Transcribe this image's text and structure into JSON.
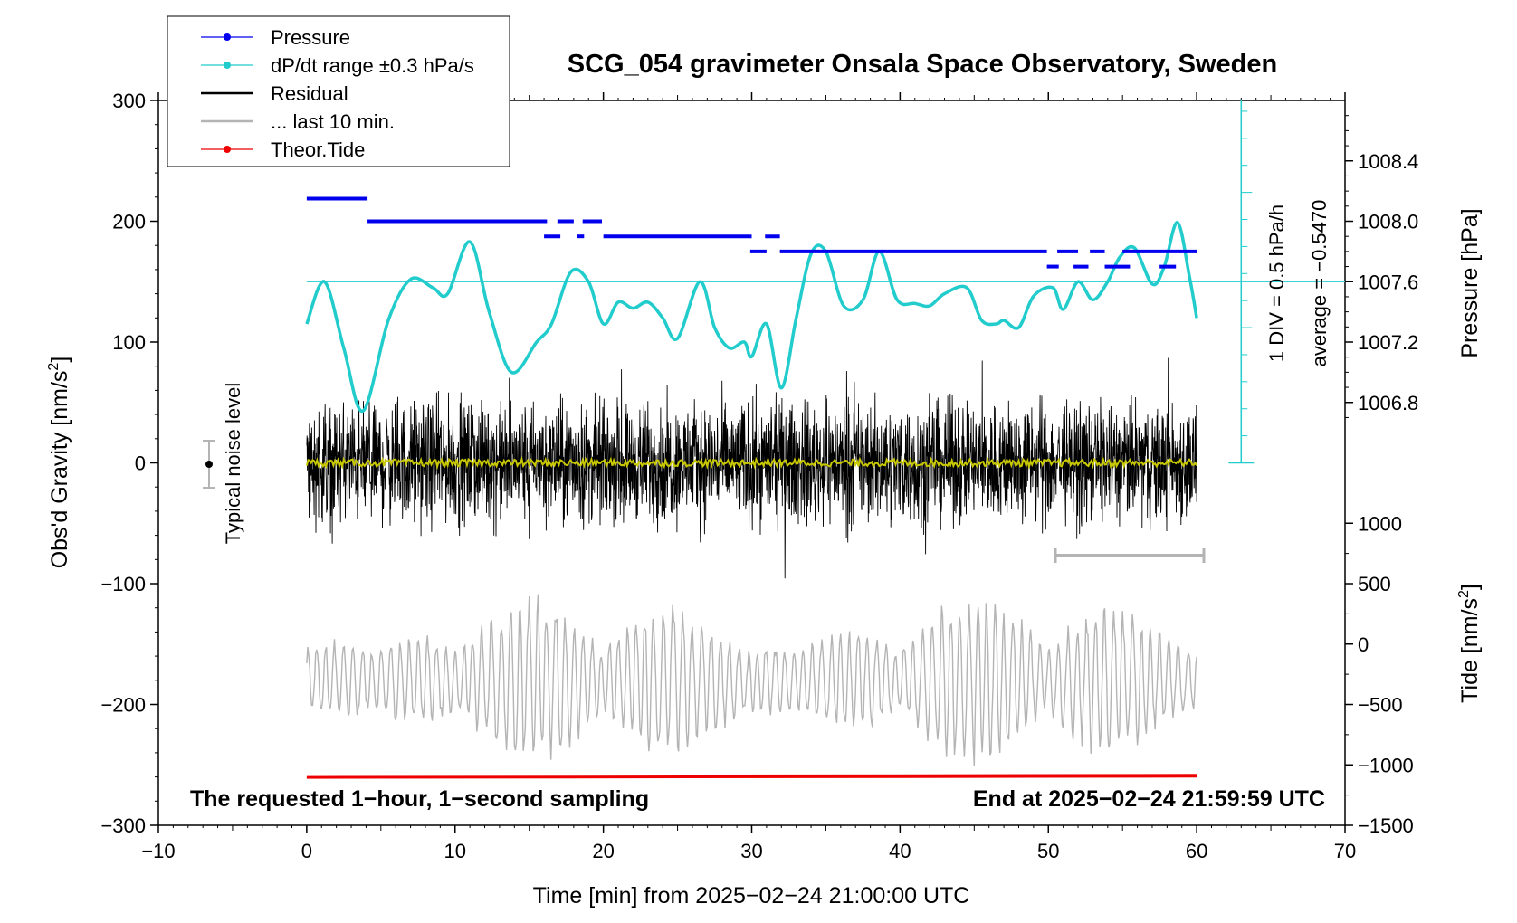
{
  "chart_data": {
    "type": "line",
    "title": "SCG_054 gravimeter Onsala Space Observatory, Sweden",
    "xlabel": "Time [min] from 2025−02−24 21:00:00 UTC",
    "ylabel_left": "Obs'd Gravity [nm/s",
    "ylabel_left_sup": "2",
    "ylabel_left_close": "]",
    "ylabel_right_pressure": "Pressure [hPa]",
    "ylabel_right_tide": "Tide [nm/s",
    "ylabel_right_tide_sup": "2",
    "ylabel_right_tide_close": "]",
    "xlim": [
      -10,
      70
    ],
    "ylim_left": [
      -300,
      300
    ],
    "x_ticks": [
      "−10",
      "0",
      "10",
      "20",
      "30",
      "40",
      "50",
      "60",
      "70"
    ],
    "x_tick_values": [
      -10,
      0,
      10,
      20,
      30,
      40,
      50,
      60,
      70
    ],
    "y_left_ticks": [
      "300",
      "200",
      "100",
      "0",
      "−100",
      "−200",
      "−300"
    ],
    "y_left_tick_values": [
      300,
      200,
      100,
      0,
      -100,
      -200,
      -300
    ],
    "pressure_axis": {
      "ticks": [
        "1008.4",
        "1008.0",
        "1007.6",
        "1007.2",
        "1006.8"
      ],
      "tick_values": [
        1008.4,
        1008.0,
        1007.6,
        1007.2,
        1006.8
      ],
      "range": [
        1006.6,
        1008.8
      ]
    },
    "tide_axis": {
      "ticks": [
        "1000",
        "500",
        "0",
        "−500",
        "−1000",
        "−1500"
      ],
      "tick_values": [
        1000,
        500,
        0,
        -500,
        -1000,
        -1500
      ],
      "range": [
        -1500,
        1000
      ]
    },
    "legend": [
      {
        "label": "Pressure",
        "color": "#0000ee",
        "marker": true
      },
      {
        "label": "dP/dt range ±0.3 hPa/s",
        "color": "#22cccc",
        "marker": true
      },
      {
        "label": "Residual",
        "color": "#000000",
        "marker": false
      },
      {
        "label": "... last 10 min.",
        "color": "#b4b4b4",
        "marker": false
      },
      {
        "label": "Theor.Tide",
        "color": "#ee0000",
        "marker": true
      }
    ],
    "annotations": {
      "noise_label": "Typical noise level",
      "scale_div": "1 DIV = 0.5 hPa/h",
      "average": "average = −0.5470",
      "footer_left": "The requested 1−hour, 1−second sampling",
      "footer_right": "End at 2025−02−24 21:59:59 UTC"
    },
    "series": [
      {
        "name": "Pressure",
        "color": "#0000ee",
        "segments_hPa": [
          {
            "x0": 0,
            "x1": 4.1,
            "y": 1008.15
          },
          {
            "x0": 4.1,
            "x1": 16.2,
            "y": 1008.0
          },
          {
            "x0": 16.9,
            "x1": 18.0,
            "y": 1008.0
          },
          {
            "x0": 18.6,
            "x1": 19.9,
            "y": 1008.0
          },
          {
            "x0": 16.0,
            "x1": 17.1,
            "y": 1007.9
          },
          {
            "x0": 18.2,
            "x1": 18.7,
            "y": 1007.9
          },
          {
            "x0": 20.0,
            "x1": 30.0,
            "y": 1007.9
          },
          {
            "x0": 30.9,
            "x1": 31.9,
            "y": 1007.9
          },
          {
            "x0": 29.9,
            "x1": 31.0,
            "y": 1007.8
          },
          {
            "x0": 31.9,
            "x1": 49.9,
            "y": 1007.8
          },
          {
            "x0": 50.6,
            "x1": 52.0,
            "y": 1007.8
          },
          {
            "x0": 52.8,
            "x1": 53.8,
            "y": 1007.8
          },
          {
            "x0": 55.0,
            "x1": 60.0,
            "y": 1007.8
          },
          {
            "x0": 49.9,
            "x1": 50.7,
            "y": 1007.7
          },
          {
            "x0": 51.7,
            "x1": 52.7,
            "y": 1007.7
          },
          {
            "x0": 53.8,
            "x1": 55.5,
            "y": 1007.7
          },
          {
            "x0": 57.5,
            "x1": 58.6,
            "y": 1007.7
          }
        ]
      },
      {
        "name": "dP/dt range ±0.3 hPa/s",
        "color": "#22cccc",
        "reference_level_left_units": 150,
        "x": [
          0,
          1.2,
          2.5,
          3.8,
          5.5,
          7.0,
          8.5,
          9.5,
          11.0,
          12.3,
          13.8,
          15.5,
          16.5,
          17.8,
          19.0,
          20.0,
          21.0,
          22.0,
          23.0,
          24.0,
          25.0,
          26.5,
          27.5,
          28.5,
          29.5,
          30.0,
          31.0,
          32.0,
          33.0,
          34.0,
          35.0,
          36.2,
          37.5,
          38.6,
          39.8,
          41.0,
          42.0,
          43.0,
          44.5,
          45.5,
          46.5,
          47.0,
          48.0,
          49.0,
          50.3,
          51.0,
          52.0,
          53.0,
          54.0,
          54.8,
          55.8,
          57.0,
          57.8,
          58.7,
          59.5,
          60.0
        ],
        "y": [
          115,
          150,
          95,
          43,
          118,
          152,
          145,
          140,
          183,
          125,
          75,
          100,
          115,
          158,
          150,
          115,
          133,
          128,
          133,
          120,
          103,
          150,
          112,
          95,
          100,
          88,
          115,
          62,
          120,
          173,
          175,
          130,
          135,
          175,
          135,
          132,
          130,
          140,
          145,
          118,
          115,
          118,
          112,
          138,
          145,
          127,
          150,
          135,
          150,
          170,
          178,
          148,
          162,
          199,
          155,
          120
        ]
      },
      {
        "name": "Residual",
        "color": "#000000",
        "x_range": [
          0,
          60
        ],
        "amplitude_nm_s2": 60,
        "mean_nm_s2": 0,
        "overlay_color": "#c8c800",
        "overlay_amplitude_nm_s2": 3
      },
      {
        "name": "... last 10 min.",
        "color": "#b4b4b4",
        "x_range": [
          0,
          60
        ],
        "center_left_units": -180,
        "amplitude_left_units": 65
      },
      {
        "name": "Theor.Tide",
        "color": "#ee0000",
        "x": [
          0,
          60
        ],
        "y_left_units": [
          -260,
          -259
        ]
      }
    ]
  }
}
